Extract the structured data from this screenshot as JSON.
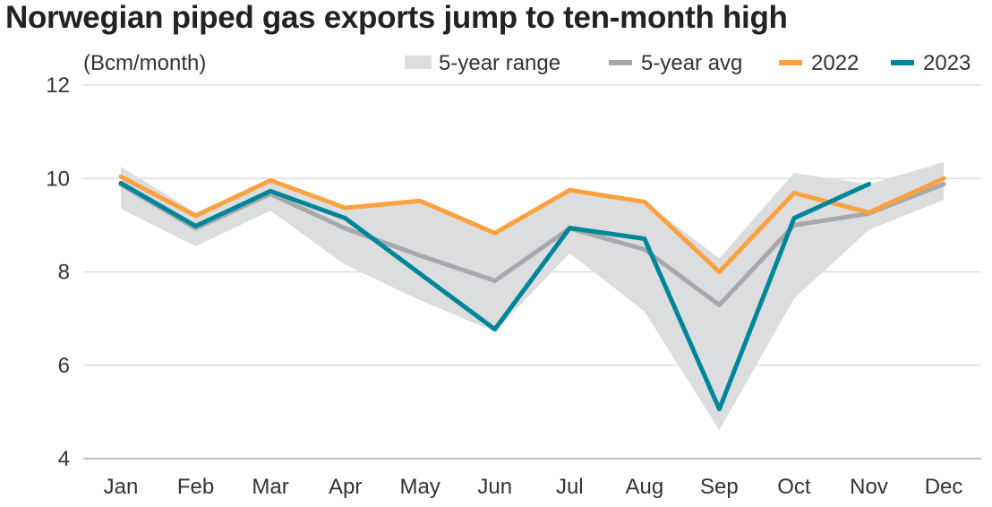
{
  "chart_data": {
    "type": "line",
    "title": "Norwegian piped gas exports jump to ten-month high",
    "ylabel": "(Bcm/month)",
    "xlabel": "",
    "categories": [
      "Jan",
      "Feb",
      "Mar",
      "Apr",
      "May",
      "Jun",
      "Jul",
      "Aug",
      "Sep",
      "Oct",
      "Nov",
      "Dec"
    ],
    "ylim": [
      4,
      12
    ],
    "yticks": [
      "4",
      "6",
      "8",
      "10",
      "12"
    ],
    "grid": true,
    "legend_placement": "top-right",
    "range": {
      "name": "5-year range",
      "color": "#dcdddf",
      "min": [
        9.35,
        8.55,
        9.31,
        8.15,
        7.39,
        6.72,
        8.4,
        7.15,
        4.61,
        7.43,
        8.9,
        9.54
      ],
      "max": [
        10.25,
        9.27,
        9.98,
        9.37,
        9.52,
        8.83,
        9.75,
        9.5,
        8.29,
        10.12,
        9.88,
        10.35
      ]
    },
    "series": [
      {
        "name": "5-year avg",
        "color": "#a7a8ab",
        "values": [
          9.87,
          8.93,
          9.67,
          8.93,
          8.35,
          7.81,
          8.93,
          8.48,
          7.29,
          9.0,
          9.25,
          9.88
        ]
      },
      {
        "name": "2022",
        "color": "#fca13f",
        "values": [
          10.04,
          9.2,
          9.96,
          9.37,
          9.52,
          8.83,
          9.75,
          9.5,
          8.0,
          9.69,
          9.27,
          10.0
        ]
      },
      {
        "name": "2023",
        "color": "#00869a",
        "values": [
          9.9,
          8.98,
          9.73,
          9.15,
          7.96,
          6.77,
          8.94,
          8.71,
          5.06,
          9.15,
          9.88,
          null
        ]
      }
    ]
  }
}
